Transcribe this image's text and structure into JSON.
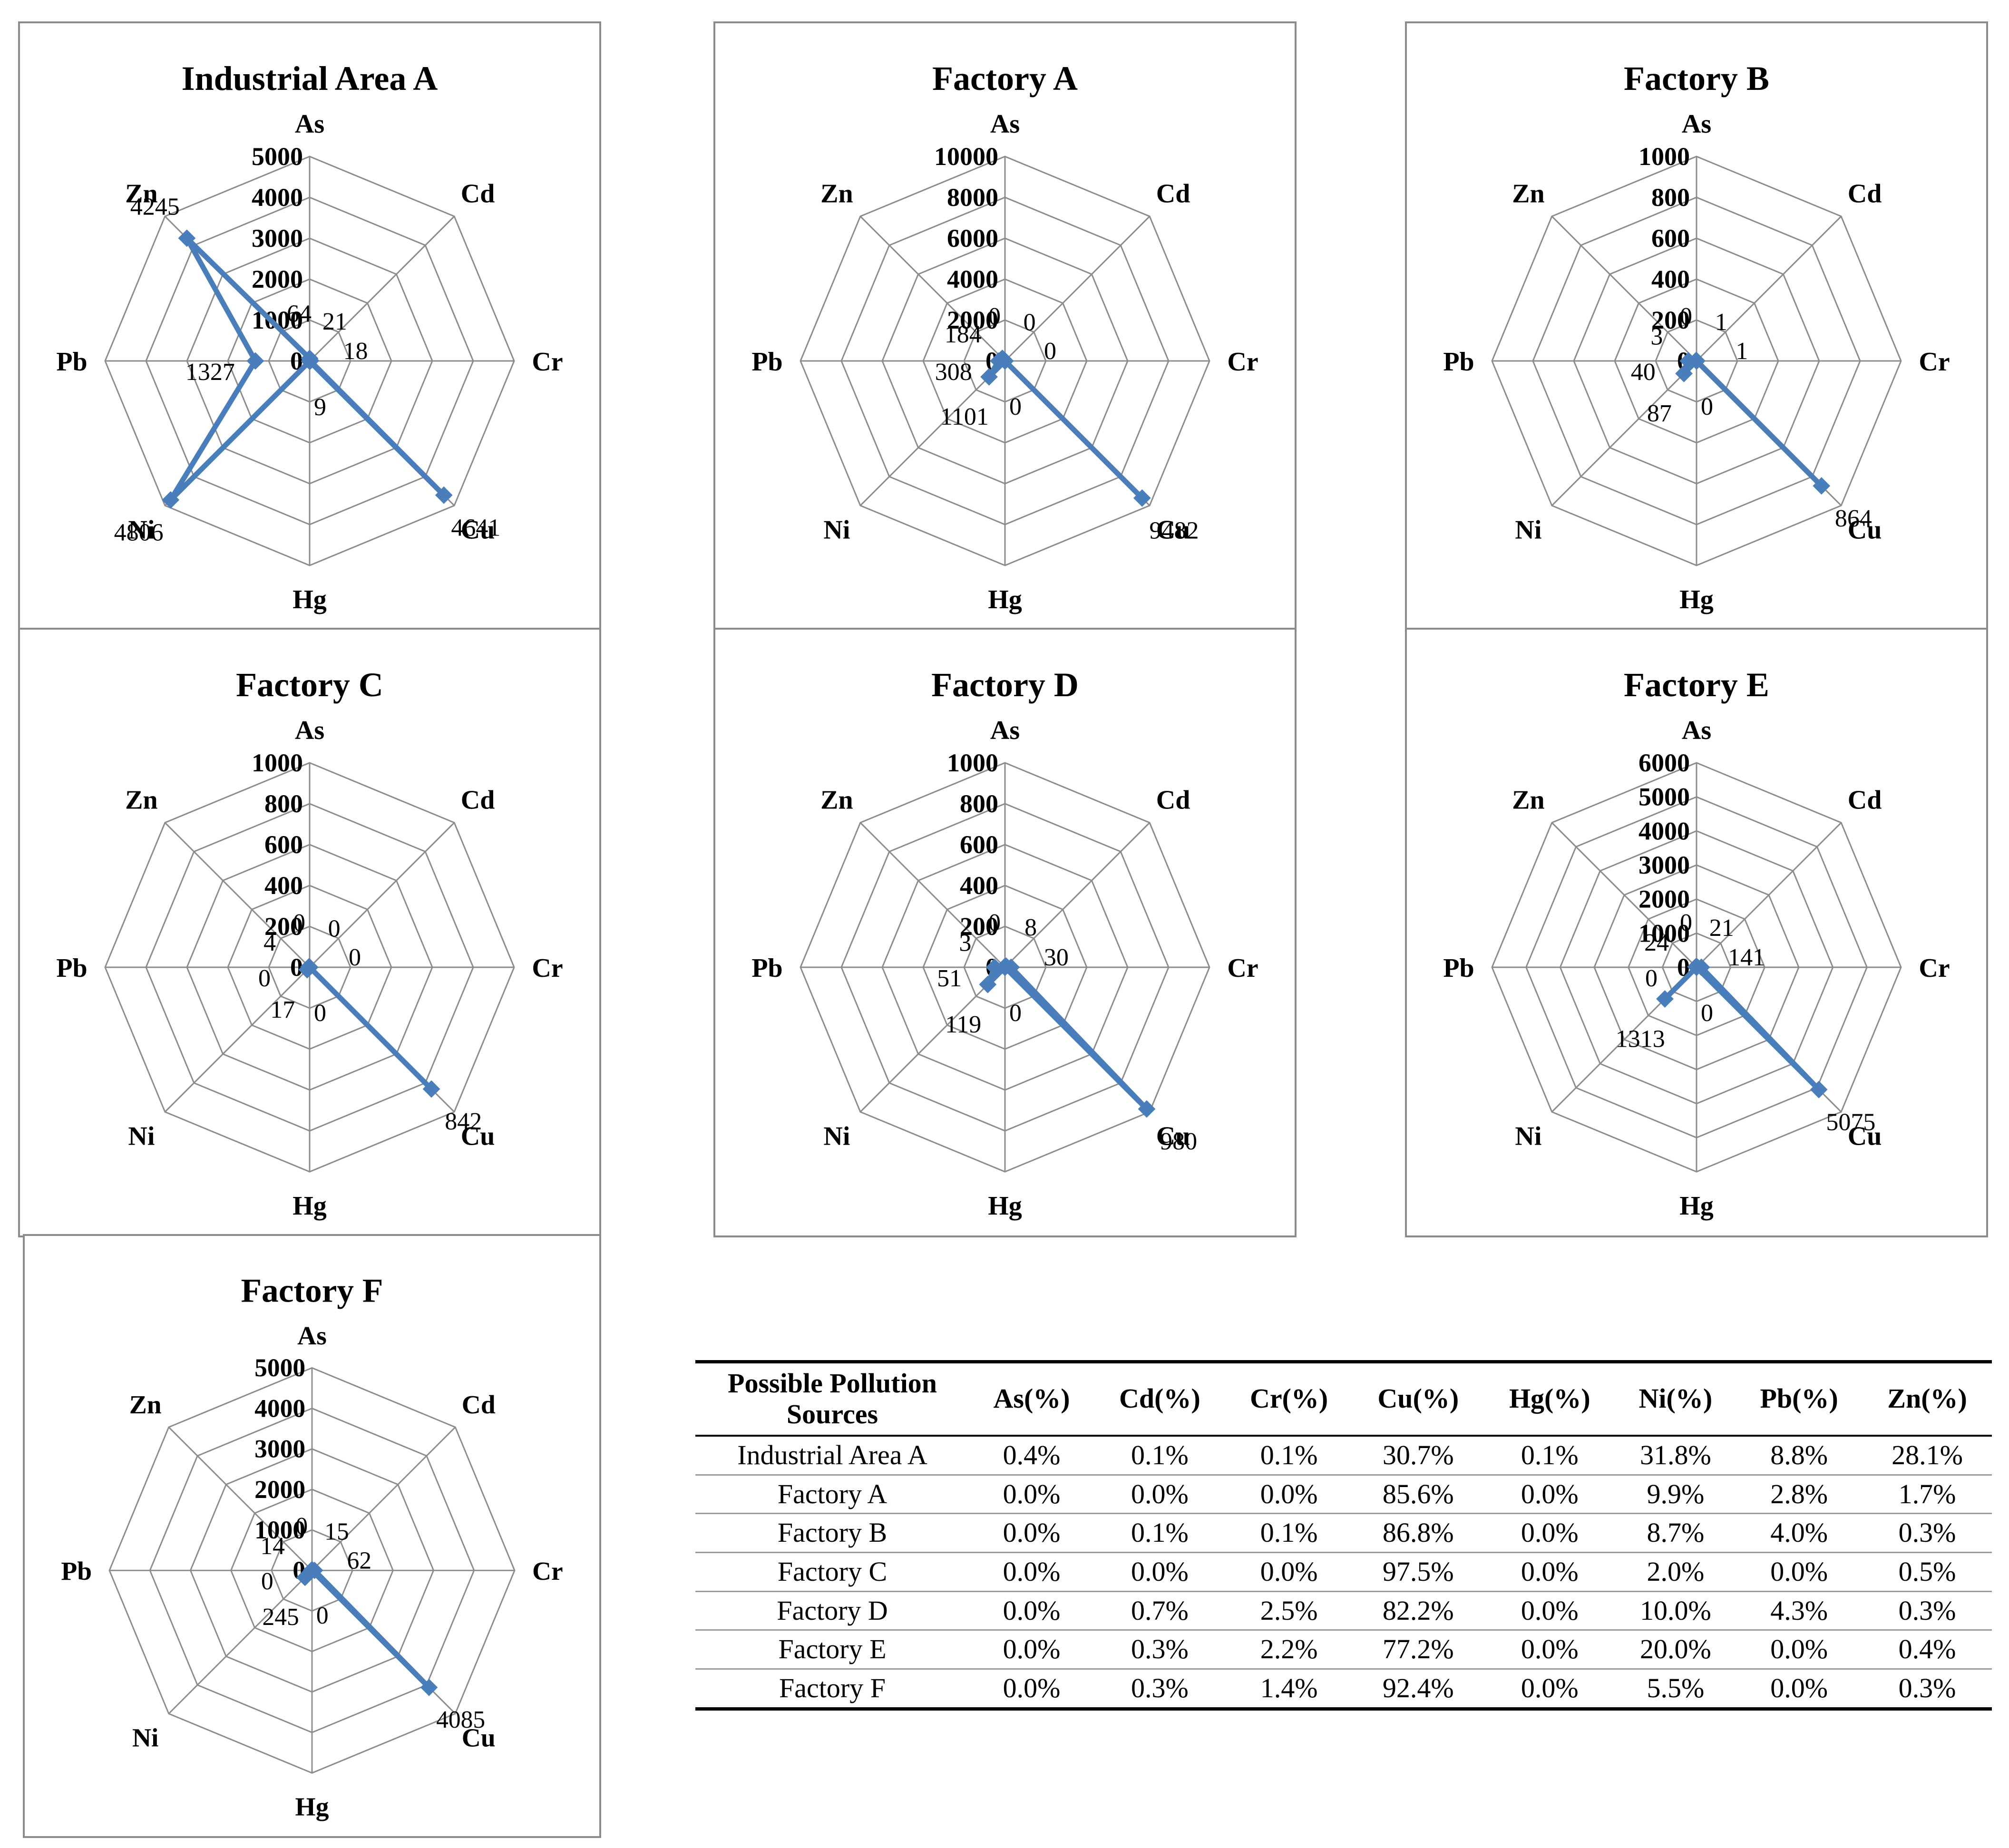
{
  "chart_data": [
    {
      "type": "radar",
      "title": "Industrial Area A",
      "axes": [
        "As",
        "Cd",
        "Cr",
        "Cu",
        "Hg",
        "Ni",
        "Pb",
        "Zn"
      ],
      "values": [
        64,
        21,
        18,
        4641,
        9,
        4806,
        1327,
        4245
      ],
      "value_labels": [
        "64",
        "21",
        "18",
        "4641",
        "9",
        "4806",
        "1327",
        "4245"
      ],
      "rmax": 5000,
      "ticks": [
        "0",
        "1000",
        "2000",
        "3000",
        "4000",
        "5000"
      ]
    },
    {
      "type": "radar",
      "title": "Factory A",
      "axes": [
        "As",
        "Cd",
        "Cr",
        "Cu",
        "Hg",
        "Ni",
        "Pb",
        "Zn"
      ],
      "values": [
        0,
        0,
        0,
        9482,
        0,
        1101,
        308,
        184
      ],
      "value_labels": [
        "0",
        "0",
        "0",
        "9482",
        "0",
        "1101",
        "308",
        "184"
      ],
      "rmax": 10000,
      "ticks": [
        "0",
        "2000",
        "4000",
        "6000",
        "8000",
        "10000"
      ]
    },
    {
      "type": "radar",
      "title": "Factory B",
      "axes": [
        "As",
        "Cd",
        "Cr",
        "Cu",
        "Hg",
        "Ni",
        "Pb",
        "Zn"
      ],
      "values": [
        0,
        1,
        1,
        864,
        0,
        87,
        40,
        3
      ],
      "value_labels": [
        "0",
        "1",
        "1",
        "864",
        "0",
        "87",
        "40",
        "3"
      ],
      "rmax": 1000,
      "ticks": [
        "0",
        "200",
        "400",
        "600",
        "800",
        "1000"
      ]
    },
    {
      "type": "radar",
      "title": "Factory C",
      "axes": [
        "As",
        "Cd",
        "Cr",
        "Cu",
        "Hg",
        "Ni",
        "Pb",
        "Zn"
      ],
      "values": [
        0,
        0,
        0,
        842,
        0,
        17,
        0,
        4
      ],
      "value_labels": [
        "0",
        "0",
        "0",
        "842",
        "0",
        "17",
        "0",
        "4"
      ],
      "rmax": 1000,
      "ticks": [
        "0",
        "200",
        "400",
        "600",
        "800",
        "1000"
      ]
    },
    {
      "type": "radar",
      "title": "Factory D",
      "axes": [
        "As",
        "Cd",
        "Cr",
        "Cu",
        "Hg",
        "Ni",
        "Pb",
        "Zn"
      ],
      "values": [
        0,
        8,
        30,
        980,
        0,
        119,
        51,
        3
      ],
      "value_labels": [
        "0",
        "8",
        "30",
        "980",
        "0",
        "119",
        "51",
        "3"
      ],
      "rmax": 1000,
      "ticks": [
        "0",
        "200",
        "400",
        "600",
        "800",
        "1000"
      ]
    },
    {
      "type": "radar",
      "title": "Factory E",
      "axes": [
        "As",
        "Cd",
        "Cr",
        "Cu",
        "Hg",
        "Ni",
        "Pb",
        "Zn"
      ],
      "values": [
        0,
        21,
        141,
        5075,
        0,
        1313,
        0,
        24
      ],
      "value_labels": [
        "0",
        "21",
        "141",
        "5075",
        "0",
        "1313",
        "0",
        "24"
      ],
      "rmax": 6000,
      "ticks": [
        "0",
        "1000",
        "2000",
        "3000",
        "4000",
        "5000",
        "6000"
      ]
    },
    {
      "type": "radar",
      "title": "Factory F",
      "axes": [
        "As",
        "Cd",
        "Cr",
        "Cu",
        "Hg",
        "Ni",
        "Pb",
        "Zn"
      ],
      "values": [
        0,
        15,
        62,
        4085,
        0,
        245,
        0,
        14
      ],
      "value_labels": [
        "0",
        "15",
        "62",
        "4085",
        "0",
        "245",
        "0",
        "14"
      ],
      "rmax": 5000,
      "ticks": [
        "0",
        "1000",
        "2000",
        "3000",
        "4000",
        "5000"
      ]
    },
    {
      "type": "table",
      "columns": [
        "Possible Pollution Sources",
        "As(%)",
        "Cd(%)",
        "Cr(%)",
        "Cu(%)",
        "Hg(%)",
        "Ni(%)",
        "Pb(%)",
        "Zn(%)"
      ],
      "rows": [
        [
          "Industrial Area A",
          "0.4%",
          "0.1%",
          "0.1%",
          "30.7%",
          "0.1%",
          "31.8%",
          "8.8%",
          "28.1%"
        ],
        [
          "Factory A",
          "0.0%",
          "0.0%",
          "0.0%",
          "85.6%",
          "0.0%",
          "9.9%",
          "2.8%",
          "1.7%"
        ],
        [
          "Factory B",
          "0.0%",
          "0.1%",
          "0.1%",
          "86.8%",
          "0.0%",
          "8.7%",
          "4.0%",
          "0.3%"
        ],
        [
          "Factory C",
          "0.0%",
          "0.0%",
          "0.0%",
          "97.5%",
          "0.0%",
          "2.0%",
          "0.0%",
          "0.5%"
        ],
        [
          "Factory D",
          "0.0%",
          "0.7%",
          "2.5%",
          "82.2%",
          "0.0%",
          "10.0%",
          "4.3%",
          "0.3%"
        ],
        [
          "Factory E",
          "0.0%",
          "0.3%",
          "2.2%",
          "77.2%",
          "0.0%",
          "20.0%",
          "0.0%",
          "0.4%"
        ],
        [
          "Factory F",
          "0.0%",
          "0.3%",
          "1.4%",
          "92.4%",
          "0.0%",
          "5.5%",
          "0.0%",
          "0.3%"
        ]
      ]
    }
  ],
  "colors": {
    "series": "#4a7ebb",
    "grid": "#8c8c8c",
    "border": "#8c8c8c"
  }
}
